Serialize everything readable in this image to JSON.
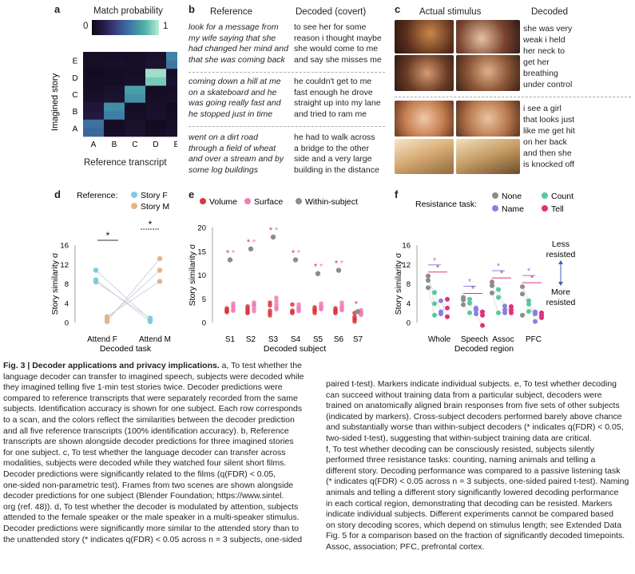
{
  "panel_a": {
    "label": "a",
    "colorbar_title": "Match probability",
    "cb_min": "0",
    "cb_max": "1",
    "ylabel": "Imagined story",
    "xlabel": "Reference transcript",
    "categories": [
      "A",
      "B",
      "C",
      "D",
      "E"
    ],
    "matrix": [
      [
        0.55,
        0.05,
        0.08,
        0.04,
        0.06
      ],
      [
        0.12,
        0.65,
        0.05,
        0.07,
        0.04
      ],
      [
        0.06,
        0.08,
        0.72,
        0.05,
        0.06
      ],
      [
        0.04,
        0.05,
        0.06,
        0.95,
        0.07
      ],
      [
        0.05,
        0.06,
        0.05,
        0.08,
        0.62
      ]
    ]
  },
  "panel_b": {
    "label": "b",
    "col1": "Reference",
    "col2": "Decoded (covert)",
    "rows": [
      {
        "ref": [
          "look for a message from",
          "my wife saying that she",
          "had changed her mind and",
          "that she was coming back"
        ],
        "dec": [
          "to see her for some",
          "reason i thought maybe",
          "she would come to me",
          "and say she misses me"
        ]
      },
      {
        "ref": [
          "coming down a hill at me",
          "on a skateboard and he",
          "was going really fast and",
          "he stopped just in time"
        ],
        "dec": [
          "he couldn't get to me",
          "fast enough he drove",
          "straight up into my lane",
          "and tried to ram me"
        ]
      },
      {
        "ref": [
          "went on a dirt road",
          "through a field of wheat",
          "and over a stream and by",
          "some log buildings"
        ],
        "dec": [
          "he had to walk across",
          "a bridge to the other",
          "side and a very large",
          "building in the distance"
        ]
      }
    ]
  },
  "panel_c": {
    "label": "c",
    "col1": "Actual stimulus",
    "col2": "Decoded",
    "rows": [
      {
        "dec": [
          "she was very",
          "weak i held",
          "her neck to",
          "get her",
          "breathing",
          "under control"
        ]
      },
      {
        "dec": [
          "i see a girl",
          "that looks just",
          "like me get hit",
          "on her back",
          "and then she",
          "is knocked off"
        ]
      }
    ]
  },
  "panel_d": {
    "label": "d",
    "legend_title": "Reference:",
    "legend": [
      {
        "name": "Story F",
        "color": "#7ecbe0"
      },
      {
        "name": "Story M",
        "color": "#e3b48a"
      }
    ],
    "ylabel": "Story similarity σ",
    "xlabel": "Decoded task",
    "categories": [
      "Attend F",
      "Attend M"
    ],
    "yticks": [
      "0",
      "4",
      "8",
      "12",
      "16"
    ],
    "ylim": [
      0,
      16
    ],
    "star": "*"
  },
  "panel_e": {
    "label": "e",
    "legend": [
      {
        "name": "Volume",
        "color": "#d9383f"
      },
      {
        "name": "Surface",
        "color": "#ef7fb7"
      },
      {
        "name": "Within-subject",
        "color": "#8c8c8c"
      }
    ],
    "ylabel": "Story similarity σ",
    "xlabel": "Decoded subject",
    "categories": [
      "S1",
      "S2",
      "S3",
      "S4",
      "S5",
      "S6",
      "S7"
    ],
    "within": [
      13.2,
      15.5,
      18.0,
      13.2,
      10.3,
      11.0,
      2.3
    ],
    "yticks": [
      "0",
      "5",
      "10",
      "15",
      "20"
    ],
    "ylim": [
      0,
      20
    ],
    "star": "*"
  },
  "panel_f": {
    "label": "f",
    "legend_title": "Resistance task:",
    "legend": [
      {
        "name": "None",
        "color": "#8c8c8c"
      },
      {
        "name": "Count",
        "color": "#58c6a1"
      },
      {
        "name": "Name",
        "color": "#8b7fe0"
      },
      {
        "name": "Tell",
        "color": "#e0307f"
      }
    ],
    "ylabel": "Story similarity σ",
    "xlabel": "Decoded region",
    "categories": [
      "Whole",
      "Speech",
      "Assoc",
      "PFC"
    ],
    "yticks": [
      "0",
      "4",
      "8",
      "12",
      "16"
    ],
    "ylim": [
      0,
      16
    ],
    "less": [
      "Less",
      "resisted"
    ],
    "more": [
      "More",
      "resisted"
    ],
    "star": "*"
  },
  "caption_left": [
    {
      "bold": "Fig. 3 | Decoder applications and privacy implications.",
      "rest": " a, To test whether the"
    },
    {
      "rest": "language decoder can transfer to imagined speech, subjects were decoded while"
    },
    {
      "rest": "they imagined telling five 1-min test stories twice. Decoder predictions were"
    },
    {
      "rest": "compared to reference transcripts that were separately recorded from the same"
    },
    {
      "rest": "subjects. Identification accuracy is shown for one subject. Each row corresponds"
    },
    {
      "rest": "to a scan, and the colors reflect the similarities between the decoder prediction"
    },
    {
      "rest": "and all five reference transcripts (100% identification accuracy). b, Reference"
    },
    {
      "rest": "transcripts are shown alongside decoder predictions for three imagined stories"
    },
    {
      "rest": "for one subject. c, To test whether the language decoder can transfer across"
    },
    {
      "rest": "modalities, subjects were decoded while they watched four silent short films."
    },
    {
      "rest": "Decoder predictions were significantly related to the films (q(FDR) < 0.05,"
    },
    {
      "rest": "one-sided non-parametric test). Frames from two scenes are shown alongside"
    },
    {
      "rest": "decoder predictions for one subject (Blender Foundation; https://www.sintel."
    },
    {
      "rest": "org (ref. 48)). d, To test whether the decoder is modulated by attention, subjects"
    },
    {
      "rest": "attended to the female speaker or the male speaker in a multi-speaker stimulus."
    },
    {
      "rest": "Decoder predictions were significantly more similar to the attended story than to"
    },
    {
      "rest": "the unattended story (* indicates q(FDR) < 0.05 across n = 3 subjects, one-sided"
    }
  ],
  "caption_right": [
    "paired t-test). Markers indicate individual subjects. e, To test whether decoding",
    "can succeed without training data from a particular subject, decoders were",
    "trained on anatomically aligned brain responses from five sets of other subjects",
    "(indicated by markers). Cross-subject decoders performed barely above chance",
    "and substantially worse than within-subject decoders (* indicates q(FDR) < 0.05,",
    "two-sided t-test), suggesting that within-subject training data are critical.",
    "f, To test whether decoding can be consciously resisted, subjects silently",
    "performed three resistance tasks: counting, naming animals and telling a",
    "different story. Decoding performance was compared to a passive listening task",
    "(* indicates q(FDR) < 0.05 across n = 3 subjects, one-sided paired t-test). Naming",
    "animals and telling a different story significantly lowered decoding performance",
    "in each cortical region, demonstrating that decoding can be resisted. Markers",
    "indicate individual subjects. Different experiments cannot be compared based",
    "on story decoding scores, which depend on stimulus length; see Extended Data",
    "Fig. 5 for a comparison based on the fraction of significantly decoded timepoints.",
    "Assoc, association; PFC, prefrontal cortex."
  ]
}
